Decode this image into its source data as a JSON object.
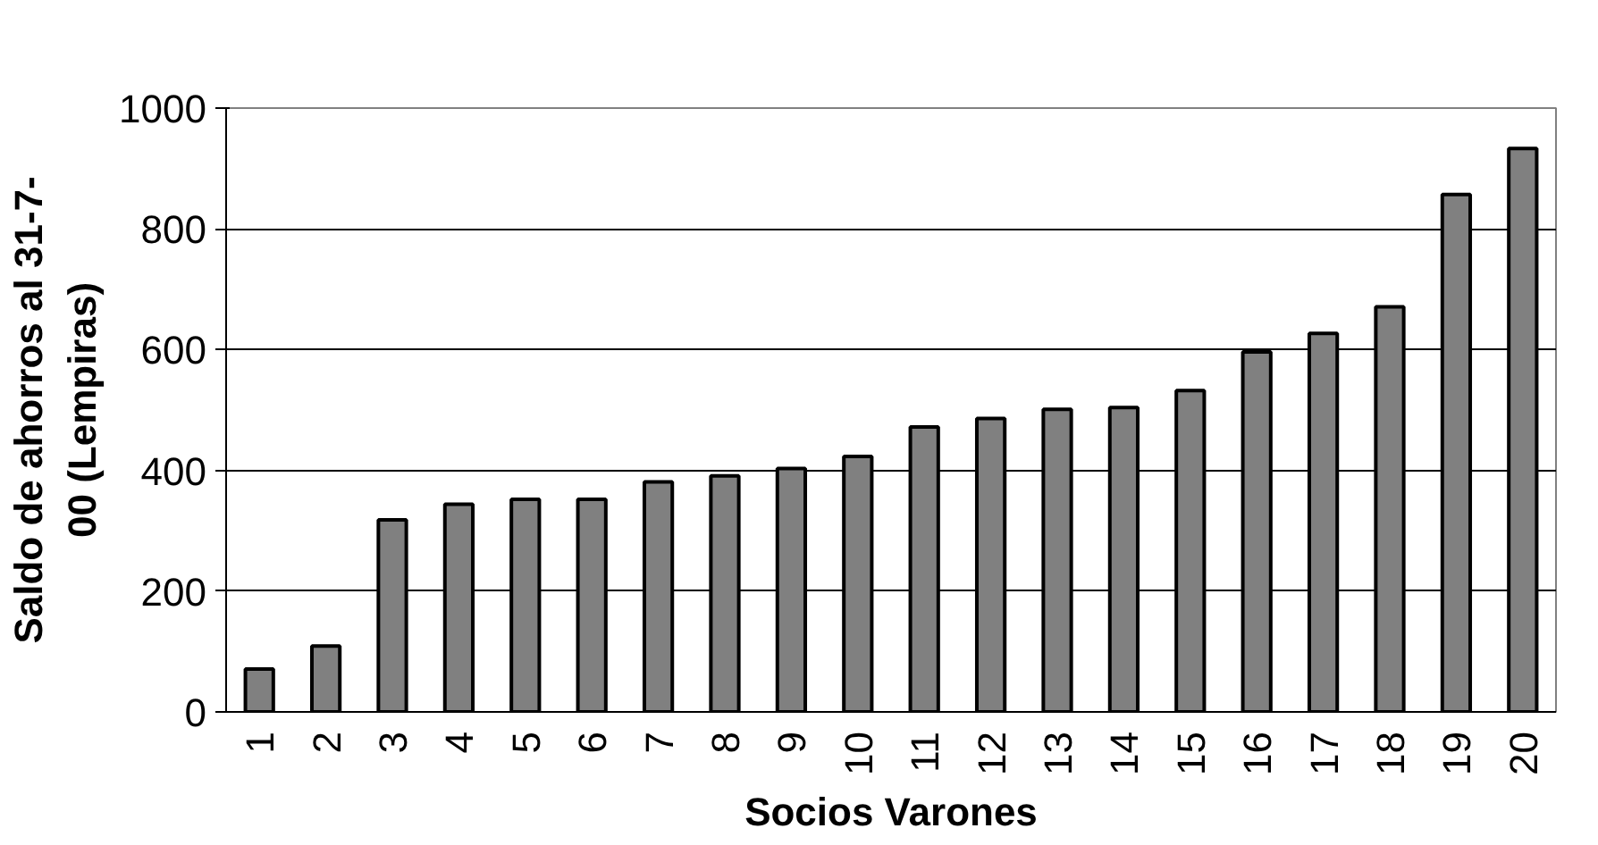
{
  "chart_data": {
    "type": "bar",
    "xlabel": "Socios Varones",
    "ylabel": "Saldo de ahorros al 31-7-\n00 (Lempiras)",
    "categories": [
      "1",
      "2",
      "3",
      "4",
      "5",
      "6",
      "7",
      "8",
      "9",
      "10",
      "11",
      "12",
      "13",
      "14",
      "15",
      "16",
      "17",
      "18",
      "19",
      "20"
    ],
    "values": [
      71,
      109,
      318,
      344,
      352,
      352,
      381,
      391,
      403,
      423,
      472,
      486,
      501,
      504,
      532,
      596,
      627,
      671,
      857,
      933
    ],
    "color": "#808080",
    "ylim": [
      0,
      1000
    ],
    "yticks": [
      0,
      200,
      400,
      600,
      800,
      1000
    ],
    "grid": "y"
  }
}
